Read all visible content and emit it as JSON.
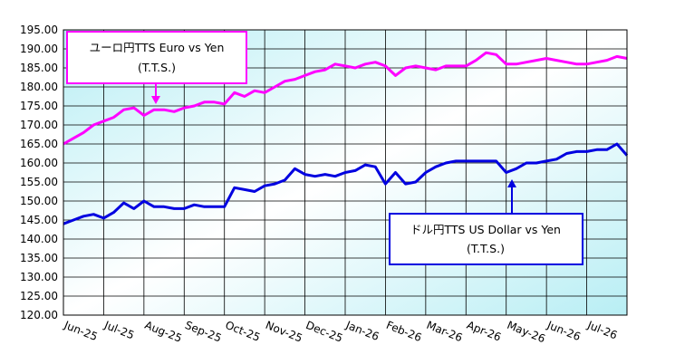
{
  "chart_data": {
    "type": "line",
    "categories": [
      "Jun-25",
      null,
      null,
      null,
      "Jul-25",
      null,
      null,
      null,
      "Aug-25",
      null,
      null,
      null,
      "Sep-25",
      null,
      null,
      null,
      "Oct-25",
      null,
      null,
      null,
      "Nov-25",
      null,
      null,
      null,
      "Dec-25",
      null,
      null,
      null,
      "Jan-26",
      null,
      null,
      null,
      "Feb-26",
      null,
      null,
      null,
      "Mar-26",
      null,
      null,
      null,
      "Apr-26",
      null,
      null,
      null,
      "May-26",
      null,
      null,
      null,
      "Jun-26",
      null,
      null,
      null,
      "Jul-26",
      null,
      null,
      null,
      null
    ],
    "series": [
      {
        "color": "#ff00ff",
        "values": [
          165,
          166.5,
          168,
          170,
          171,
          172,
          174,
          174.5,
          172.5,
          174,
          174,
          173.5,
          174.5,
          175,
          176,
          176,
          175.5,
          178.5,
          177.5,
          179,
          178.5,
          180,
          181.5,
          182,
          183,
          184,
          184.5,
          186,
          185.5,
          185,
          186,
          186.5,
          185.5,
          183,
          185,
          185.5,
          185,
          184.5,
          185.5,
          185.5,
          185.5,
          187,
          189,
          188.5,
          186,
          186,
          186.5,
          187,
          187.5,
          187,
          186.5,
          186,
          186,
          186.5,
          187,
          188,
          187.5
        ]
      },
      {
        "color": "#0000e0",
        "values": [
          144,
          145,
          146,
          146.5,
          145.5,
          147,
          149.5,
          148,
          150,
          148.5,
          148.5,
          148,
          148,
          149,
          148.5,
          148.5,
          148.5,
          153.5,
          153,
          152.5,
          154,
          154.5,
          155.5,
          158.5,
          157,
          156.5,
          157,
          156.5,
          157.5,
          158,
          159.5,
          159,
          154.5,
          157.5,
          154.5,
          155,
          157.5,
          159,
          160,
          160.5,
          160.5,
          160.5,
          160.5,
          160.5,
          157.5,
          158.5,
          160,
          160,
          160.5,
          161,
          162.5,
          163,
          163,
          163.5,
          163.5,
          165,
          162
        ]
      }
    ],
    "ylim": [
      120,
      195
    ],
    "yticks": [
      {
        "value": 120,
        "label": "120.00"
      },
      {
        "value": 125,
        "label": "125.00"
      },
      {
        "value": 130,
        "label": "130.00"
      },
      {
        "value": 135,
        "label": "135.00"
      },
      {
        "value": 140,
        "label": "140.00"
      },
      {
        "value": 145,
        "label": "145.00"
      },
      {
        "value": 150,
        "label": "150.00"
      },
      {
        "value": 155,
        "label": "155.00"
      },
      {
        "value": 160,
        "label": "160.00"
      },
      {
        "value": 165,
        "label": "165.00"
      },
      {
        "value": 170,
        "label": "170.00"
      },
      {
        "value": 175,
        "label": "175.00"
      },
      {
        "value": 180,
        "label": "180.00"
      },
      {
        "value": 185,
        "label": "185.00"
      },
      {
        "value": 190,
        "label": "190.00"
      },
      {
        "value": 195,
        "label": "195.00"
      }
    ],
    "grid": true,
    "annotations": [
      [
        "ユーロ円TTS Euro vs Yen",
        "(T.T.S.)"
      ],
      [
        "ドル円TTS  US Dollar vs Yen",
        "(T.T.S.)"
      ]
    ]
  }
}
